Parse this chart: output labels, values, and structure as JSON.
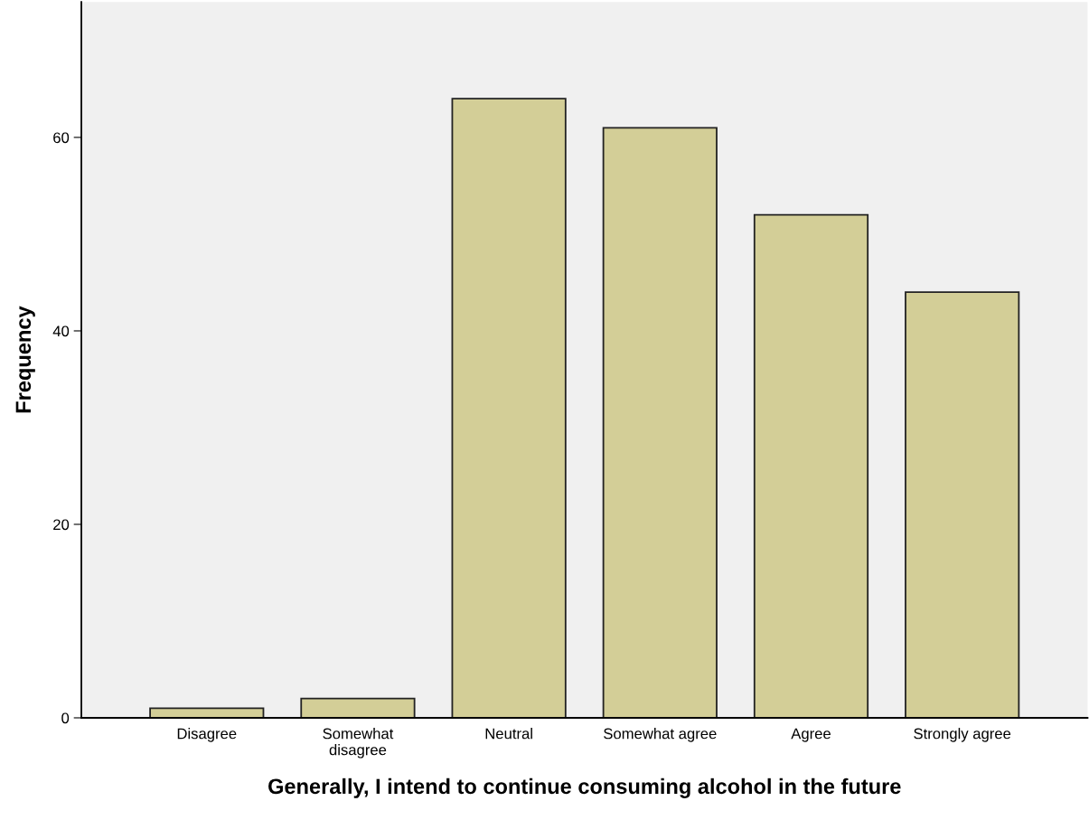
{
  "chart_data": {
    "type": "bar",
    "xlabel": "Generally, I intend to continue consuming alcohol in the future",
    "ylabel": "Frequency",
    "categories": [
      "Disagree",
      "Somewhat\ndisagree",
      "Neutral",
      "Somewhat agree",
      "Agree",
      "Strongly agree"
    ],
    "values": [
      1,
      2,
      64,
      61,
      52,
      44
    ],
    "color": "#d3ce97",
    "ylim": [
      0,
      74
    ],
    "yticks": [
      0,
      20,
      40,
      60
    ],
    "grid": false,
    "legend": false
  }
}
